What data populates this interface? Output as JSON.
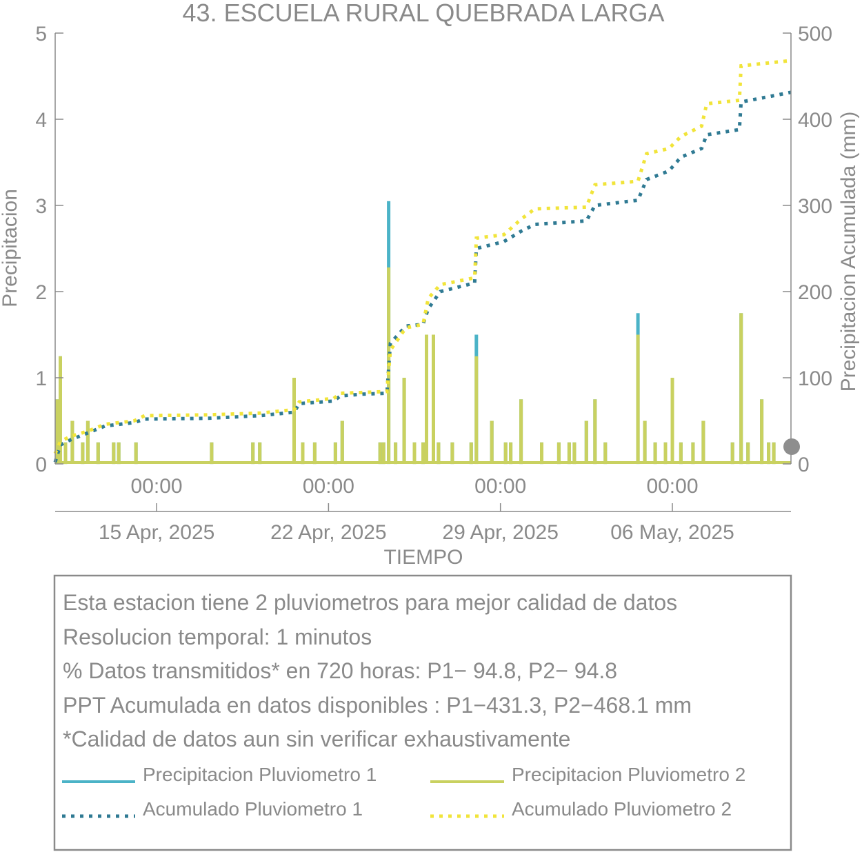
{
  "colors": {
    "p1": "#4bb3c7",
    "p2": "#c9d160",
    "acc1": "#2f7a93",
    "acc2": "#f1e43a",
    "axis": "#8a8a8a",
    "marker": "#8e8e8e"
  },
  "chart_data": {
    "type": "bar+line",
    "title": "43. ESCUELA RURAL QUEBRADA LARGA",
    "xlabel": "TIEMPO",
    "ylabel": "Precipitacion",
    "ylabel_right": "Precipitacion Acumulada (mm)",
    "ylim": [
      0,
      5
    ],
    "ylim_right": [
      0,
      500
    ],
    "yticks": [
      "0",
      "1",
      "2",
      "3",
      "4",
      "5"
    ],
    "yticks_right": [
      "0",
      "100",
      "200",
      "300",
      "400",
      "500"
    ],
    "xlim": [
      -5.9,
      36.9
    ],
    "xticks": [
      {
        "x": 0,
        "time": "00:00",
        "date": "15 Apr, 2025"
      },
      {
        "x": 10,
        "time": "00:00",
        "date": "22 Apr, 2025"
      },
      {
        "x": 20,
        "time": "00:00",
        "date": "29 Apr, 2025"
      },
      {
        "x": 30,
        "time": "00:00",
        "date": "06 May, 2025"
      }
    ],
    "series": [
      {
        "name": "Precipitacion Pluviometro 1",
        "kind": "bar",
        "points": [
          [
            -5.8,
            0.75
          ],
          [
            -5.6,
            1.25
          ],
          [
            -5.3,
            0.25
          ],
          [
            -4.9,
            0.5
          ],
          [
            -4.3,
            0.25
          ],
          [
            -4.0,
            0.5
          ],
          [
            -3.4,
            0.25
          ],
          [
            -2.5,
            0.25
          ],
          [
            -2.2,
            0.25
          ],
          [
            -1.2,
            0.25
          ],
          [
            3.2,
            0.25
          ],
          [
            5.6,
            0.25
          ],
          [
            6.0,
            0.25
          ],
          [
            8.0,
            1.0
          ],
          [
            8.5,
            0.25
          ],
          [
            9.2,
            0.25
          ],
          [
            10.4,
            0.25
          ],
          [
            10.8,
            0.5
          ],
          [
            13.0,
            0.25
          ],
          [
            13.2,
            0.25
          ],
          [
            13.5,
            3.05
          ],
          [
            13.9,
            0.25
          ],
          [
            14.4,
            1.0
          ],
          [
            15.0,
            0.25
          ],
          [
            15.5,
            0.25
          ],
          [
            15.7,
            1.5
          ],
          [
            16.1,
            1.5
          ],
          [
            16.4,
            0.25
          ],
          [
            17.2,
            0.25
          ],
          [
            18.3,
            0.25
          ],
          [
            18.6,
            1.5
          ],
          [
            19.5,
            0.5
          ],
          [
            20.3,
            0.25
          ],
          [
            20.6,
            0.25
          ],
          [
            21.2,
            0.75
          ],
          [
            22.4,
            0.25
          ],
          [
            23.4,
            0.25
          ],
          [
            24.0,
            0.25
          ],
          [
            24.3,
            0.25
          ],
          [
            25.0,
            0.5
          ],
          [
            25.5,
            0.75
          ],
          [
            26.1,
            0.25
          ],
          [
            28.0,
            1.75
          ],
          [
            28.4,
            0.5
          ],
          [
            29.0,
            0.25
          ],
          [
            29.6,
            0.25
          ],
          [
            30.0,
            1.0
          ],
          [
            30.5,
            0.25
          ],
          [
            31.2,
            0.25
          ],
          [
            31.8,
            0.5
          ],
          [
            33.5,
            0.25
          ],
          [
            34.0,
            1.75
          ],
          [
            34.4,
            0.25
          ],
          [
            35.2,
            0.75
          ],
          [
            35.6,
            0.25
          ],
          [
            35.9,
            0.25
          ]
        ]
      },
      {
        "name": "Precipitacion Pluviometro 2",
        "kind": "bar",
        "points": [
          [
            -5.8,
            0.75
          ],
          [
            -5.6,
            1.25
          ],
          [
            -5.3,
            0.25
          ],
          [
            -4.9,
            0.5
          ],
          [
            -4.3,
            0.25
          ],
          [
            -4.0,
            0.5
          ],
          [
            -3.4,
            0.25
          ],
          [
            -2.5,
            0.25
          ],
          [
            -2.2,
            0.25
          ],
          [
            -1.2,
            0.25
          ],
          [
            3.2,
            0.25
          ],
          [
            5.6,
            0.25
          ],
          [
            6.0,
            0.25
          ],
          [
            8.0,
            1.0
          ],
          [
            8.5,
            0.25
          ],
          [
            9.2,
            0.25
          ],
          [
            10.4,
            0.25
          ],
          [
            10.8,
            0.5
          ],
          [
            13.0,
            0.25
          ],
          [
            13.2,
            0.25
          ],
          [
            13.5,
            2.28
          ],
          [
            13.9,
            0.25
          ],
          [
            14.4,
            1.0
          ],
          [
            15.0,
            0.25
          ],
          [
            15.5,
            0.25
          ],
          [
            15.7,
            1.5
          ],
          [
            16.1,
            1.5
          ],
          [
            16.4,
            0.25
          ],
          [
            17.2,
            0.25
          ],
          [
            18.3,
            0.25
          ],
          [
            18.6,
            1.25
          ],
          [
            19.5,
            0.5
          ],
          [
            20.3,
            0.25
          ],
          [
            20.6,
            0.25
          ],
          [
            21.2,
            0.75
          ],
          [
            22.4,
            0.25
          ],
          [
            23.4,
            0.25
          ],
          [
            24.0,
            0.25
          ],
          [
            24.3,
            0.25
          ],
          [
            25.0,
            0.5
          ],
          [
            25.5,
            0.75
          ],
          [
            26.1,
            0.25
          ],
          [
            28.0,
            1.5
          ],
          [
            28.4,
            0.5
          ],
          [
            29.0,
            0.25
          ],
          [
            29.6,
            0.25
          ],
          [
            30.0,
            1.0
          ],
          [
            30.5,
            0.25
          ],
          [
            31.2,
            0.25
          ],
          [
            31.8,
            0.5
          ],
          [
            33.5,
            0.25
          ],
          [
            34.0,
            1.75
          ],
          [
            34.4,
            0.25
          ],
          [
            35.2,
            0.75
          ],
          [
            35.6,
            0.25
          ],
          [
            35.9,
            0.25
          ]
        ]
      },
      {
        "name": "Acumulado Pluviometro 1",
        "kind": "line-dotted",
        "axis": "right",
        "points": [
          [
            -5.9,
            2
          ],
          [
            -5.6,
            22
          ],
          [
            -5.0,
            28
          ],
          [
            -4.0,
            36
          ],
          [
            -3.0,
            44
          ],
          [
            -1.3,
            48
          ],
          [
            -0.7,
            52
          ],
          [
            3.0,
            53
          ],
          [
            6.0,
            56
          ],
          [
            8.0,
            60
          ],
          [
            8.3,
            70
          ],
          [
            10.3,
            73
          ],
          [
            10.7,
            79
          ],
          [
            12.0,
            81
          ],
          [
            13.4,
            82
          ],
          [
            13.6,
            140
          ],
          [
            14.5,
            160
          ],
          [
            15.5,
            162
          ],
          [
            15.8,
            180
          ],
          [
            16.5,
            200
          ],
          [
            18.5,
            210
          ],
          [
            18.6,
            250
          ],
          [
            20.2,
            258
          ],
          [
            21.2,
            270
          ],
          [
            22.0,
            278
          ],
          [
            25.0,
            282
          ],
          [
            25.5,
            300
          ],
          [
            28.0,
            306
          ],
          [
            28.5,
            330
          ],
          [
            29.8,
            340
          ],
          [
            30.5,
            356
          ],
          [
            31.7,
            366
          ],
          [
            32.0,
            382
          ],
          [
            33.9,
            388
          ],
          [
            34.0,
            420
          ],
          [
            36.9,
            431.3
          ]
        ]
      },
      {
        "name": "Acumulado Pluviometro 2",
        "kind": "line-dotted",
        "axis": "right",
        "points": [
          [
            -5.9,
            12
          ],
          [
            -5.6,
            26
          ],
          [
            -5.0,
            32
          ],
          [
            -4.0,
            38
          ],
          [
            -3.0,
            46
          ],
          [
            -1.3,
            50
          ],
          [
            -0.7,
            56
          ],
          [
            3.0,
            57
          ],
          [
            6.0,
            59
          ],
          [
            8.0,
            63
          ],
          [
            8.3,
            72
          ],
          [
            10.3,
            76
          ],
          [
            10.7,
            82
          ],
          [
            12.0,
            83
          ],
          [
            13.4,
            84
          ],
          [
            13.6,
            132
          ],
          [
            14.5,
            158
          ],
          [
            15.5,
            162
          ],
          [
            15.8,
            192
          ],
          [
            16.5,
            208
          ],
          [
            18.5,
            216
          ],
          [
            18.6,
            262
          ],
          [
            20.2,
            266
          ],
          [
            21.2,
            284
          ],
          [
            22.0,
            296
          ],
          [
            25.0,
            298
          ],
          [
            25.5,
            324
          ],
          [
            28.0,
            328
          ],
          [
            28.5,
            360
          ],
          [
            29.8,
            366
          ],
          [
            30.5,
            380
          ],
          [
            31.7,
            392
          ],
          [
            32.0,
            418
          ],
          [
            33.9,
            422
          ],
          [
            34.0,
            462
          ],
          [
            36.9,
            468.1
          ]
        ]
      }
    ],
    "legend": [
      "Precipitacion Pluviometro 1",
      "Precipitacion Pluviometro 2",
      "Acumulado Pluviometro 1",
      "Acumulado Pluviometro 2"
    ],
    "legend_position": "bottom",
    "grid": false
  },
  "info": {
    "line1": "Esta estacion tiene 2 pluviometros para mejor calidad de datos",
    "line2": "Resolucion temporal: 1 minutos",
    "line3": "% Datos transmitidos* en 720 horas: P1− 94.8, P2− 94.8",
    "line4": "PPT Acumulada en datos disponibles : P1−431.3, P2−468.1 mm",
    "line5": "*Calidad de datos aun sin verificar exhaustivamente"
  }
}
